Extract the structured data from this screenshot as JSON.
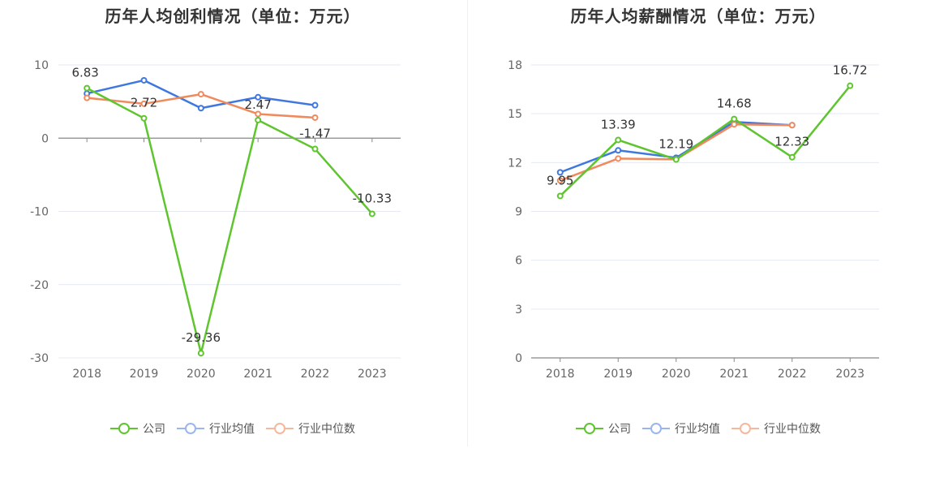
{
  "chart_data": [
    {
      "type": "line",
      "title": "历年人均创利情况（单位：万元）",
      "categories": [
        "2018",
        "2019",
        "2020",
        "2021",
        "2022",
        "2023"
      ],
      "ylim": [
        -30,
        10
      ],
      "yticks": [
        "10",
        "0",
        "-10",
        "-20",
        "-30"
      ],
      "series": [
        {
          "name": "公司",
          "color": "#5ec52f",
          "values": [
            6.83,
            2.72,
            -29.36,
            2.47,
            -1.47,
            -10.33
          ],
          "labels": [
            "6.83",
            "2.72",
            "-29.36",
            "2.47",
            "-1.47",
            "-10.33"
          ]
        },
        {
          "name": "行业均值",
          "color": "#3f77e0",
          "values": [
            6.1,
            7.9,
            4.1,
            5.6,
            4.5,
            null
          ]
        },
        {
          "name": "行业中位数",
          "color": "#f08a5d",
          "values": [
            5.5,
            4.7,
            6.0,
            3.3,
            2.8,
            null
          ]
        }
      ]
    },
    {
      "type": "line",
      "title": "历年人均薪酬情况（单位：万元）",
      "categories": [
        "2018",
        "2019",
        "2020",
        "2021",
        "2022",
        "2023"
      ],
      "ylim": [
        0,
        18
      ],
      "yticks": [
        "18",
        "15",
        "12",
        "9",
        "6",
        "3",
        "0"
      ],
      "series": [
        {
          "name": "公司",
          "color": "#5ec52f",
          "values": [
            9.95,
            13.39,
            12.19,
            14.68,
            12.33,
            16.72
          ],
          "labels": [
            "9.95",
            "13.39",
            "12.19",
            "14.68",
            "12.33",
            "16.72"
          ]
        },
        {
          "name": "行业均值",
          "color": "#3f77e0",
          "values": [
            11.4,
            12.75,
            12.3,
            14.5,
            14.3,
            null
          ]
        },
        {
          "name": "行业中位数",
          "color": "#f08a5d",
          "values": [
            10.9,
            12.25,
            12.2,
            14.35,
            14.3,
            null
          ]
        }
      ]
    }
  ],
  "legend": {
    "items": [
      "公司",
      "行业均值",
      "行业中位数"
    ]
  }
}
